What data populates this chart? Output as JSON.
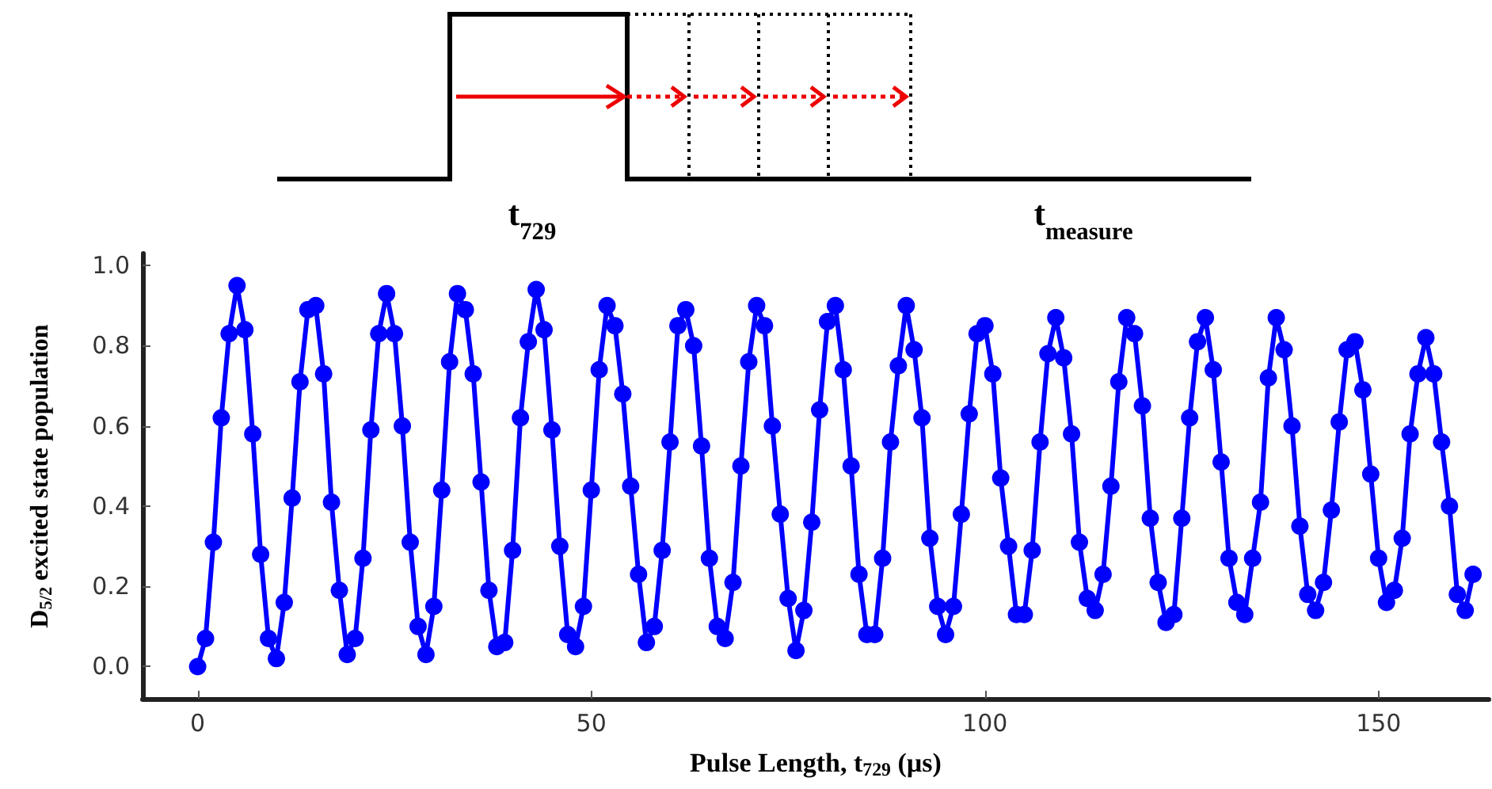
{
  "chart_data": {
    "type": "line",
    "xlabel": "Pulse Length, t$_{729}$ (µs)",
    "ylabel": "D$_{5/2}$ excited state population",
    "annotations": [
      "t$_{729}$",
      "t$_{measure}$"
    ],
    "x": [
      0,
      1,
      2,
      3,
      4,
      5,
      6,
      7,
      8,
      9,
      10,
      11,
      12,
      13,
      14,
      15,
      16,
      17,
      18,
      19,
      20,
      21,
      22,
      23,
      24,
      25,
      26,
      27,
      28,
      29,
      30,
      31,
      32,
      33,
      34,
      35,
      36,
      37,
      38,
      39,
      40,
      41,
      42,
      43,
      44,
      45,
      46,
      47,
      48,
      49,
      50,
      51,
      52,
      53,
      54,
      55,
      56,
      57,
      58,
      59,
      60,
      61,
      62,
      63,
      64,
      65,
      66,
      67,
      68,
      69,
      70,
      71,
      72,
      73,
      74,
      75,
      76,
      77,
      78,
      79,
      80,
      81,
      82,
      83,
      84,
      85,
      86,
      87,
      88,
      89,
      90,
      91,
      92,
      93,
      94,
      95,
      96,
      97,
      98,
      99,
      100,
      101,
      102,
      103,
      104,
      105,
      106,
      107,
      108,
      109,
      110,
      111,
      112,
      113,
      114,
      115,
      116,
      117,
      118,
      119,
      120,
      121,
      122,
      123,
      124,
      125,
      126,
      127,
      128,
      129,
      130,
      131,
      132,
      133,
      134,
      135,
      136,
      137,
      138,
      139,
      140,
      141,
      142,
      143,
      144,
      145,
      146,
      147,
      148,
      149,
      150,
      151,
      152,
      153,
      154,
      155,
      156,
      157,
      158,
      159,
      160,
      161,
      162
    ],
    "series": [
      {
        "color": "#0000ff",
        "values": [
          0.0,
          0.07,
          0.31,
          0.62,
          0.83,
          0.95,
          0.84,
          0.58,
          0.28,
          0.07,
          0.02,
          0.16,
          0.42,
          0.71,
          0.89,
          0.9,
          0.73,
          0.41,
          0.19,
          0.03,
          0.07,
          0.27,
          0.59,
          0.83,
          0.93,
          0.83,
          0.6,
          0.31,
          0.1,
          0.03,
          0.15,
          0.44,
          0.76,
          0.93,
          0.89,
          0.73,
          0.46,
          0.19,
          0.05,
          0.06,
          0.29,
          0.62,
          0.81,
          0.94,
          0.84,
          0.59,
          0.3,
          0.08,
          0.05,
          0.15,
          0.44,
          0.74,
          0.9,
          0.85,
          0.68,
          0.45,
          0.23,
          0.06,
          0.1,
          0.29,
          0.56,
          0.85,
          0.89,
          0.8,
          0.55,
          0.27,
          0.1,
          0.07,
          0.21,
          0.5,
          0.76,
          0.9,
          0.85,
          0.6,
          0.38,
          0.17,
          0.04,
          0.14,
          0.36,
          0.64,
          0.86,
          0.9,
          0.74,
          0.5,
          0.23,
          0.08,
          0.08,
          0.27,
          0.56,
          0.75,
          0.9,
          0.79,
          0.62,
          0.32,
          0.15,
          0.08,
          0.15,
          0.38,
          0.63,
          0.83,
          0.85,
          0.73,
          0.47,
          0.3,
          0.13,
          0.13,
          0.29,
          0.56,
          0.78,
          0.87,
          0.77,
          0.58,
          0.31,
          0.17,
          0.14,
          0.23,
          0.45,
          0.71,
          0.87,
          0.83,
          0.65,
          0.37,
          0.21,
          0.11,
          0.13,
          0.37,
          0.62,
          0.81,
          0.87,
          0.74,
          0.51,
          0.27,
          0.16,
          0.13,
          0.27,
          0.41,
          0.72,
          0.87,
          0.79,
          0.6,
          0.35,
          0.18,
          0.14,
          0.21,
          0.39,
          0.61,
          0.79,
          0.81,
          0.69,
          0.48,
          0.27,
          0.16,
          0.19,
          0.32,
          0.58,
          0.73,
          0.82,
          0.73,
          0.56,
          0.4,
          0.18,
          0.14,
          0.23
        ]
      }
    ],
    "xlim": [
      -7,
      164
    ],
    "xticks": [
      0,
      50,
      100,
      150
    ],
    "ylim": [
      -0.08,
      1.03
    ],
    "yticks": [
      {
        "value": 0,
        "label": "0.0"
      },
      {
        "value": 0.2,
        "label": "0.2"
      },
      {
        "value": 0.4,
        "label": "0.4"
      },
      {
        "value": 0.6,
        "label": "0.6"
      },
      {
        "value": 0.8,
        "label": "0.8"
      },
      {
        "value": 1,
        "label": "1.0"
      }
    ],
    "marker": "circle",
    "line_style": "solid",
    "grid": false
  }
}
